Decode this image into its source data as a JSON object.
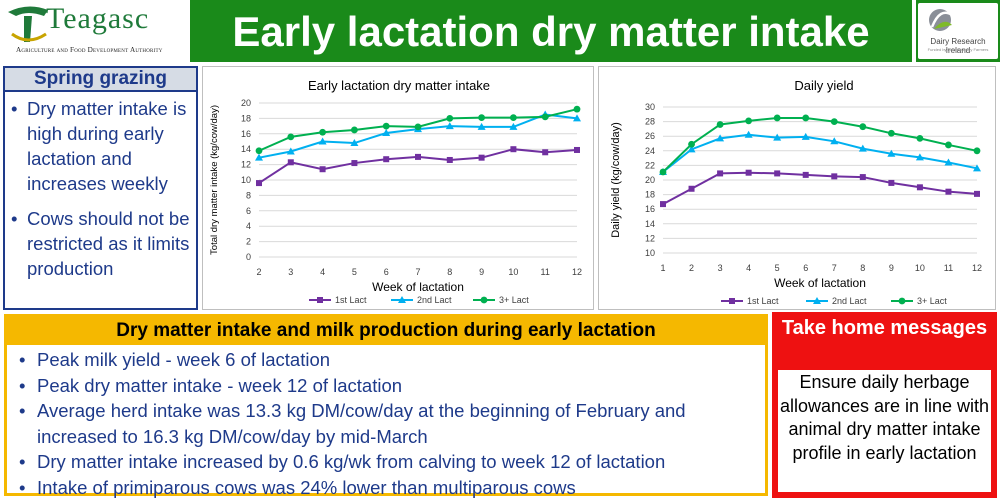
{
  "header": {
    "logo_name": "Teagasc",
    "logo_tagline": "Agriculture and Food Development Authority",
    "title": "Early lactation dry matter intake",
    "partner_logo_name": "Dairy Research Ireland",
    "partner_logo_tagline": "Funded by the Irish Dairy Farmers"
  },
  "spring": {
    "title": "Spring grazing",
    "bullets": [
      "Dry matter intake is high during early lactation and increases weekly",
      "Cows should not be restricted as it limits production"
    ]
  },
  "dm_box": {
    "title": "Dry matter intake and milk production during early lactation",
    "bullets": [
      "Peak milk yield - week 6 of lactation",
      "Peak dry matter intake - week 12 of lactation",
      "Average herd intake was 13.3 kg DM/cow/day at the beginning of February and increased to 16.3 kg DM/cow/day by mid-March",
      "Dry matter intake increased by 0.6 kg/wk from calving to week 12 of lactation",
      "Intake of primiparous cows was 24% lower than multiparous cows"
    ]
  },
  "take_home": {
    "title": "Take home messages",
    "body": "Ensure daily herbage allowances are in line with animal dry matter intake profile in early lactation"
  },
  "colors": {
    "series1": "#7030a0",
    "series2": "#00b0f0",
    "series3": "#00b050",
    "title_bar": "#1a8a1a",
    "take_home": "#ee1111",
    "dm_border": "#f5b800",
    "navy": "#1e3a8a"
  },
  "chart_data": [
    {
      "type": "line",
      "title": "Early lactation dry matter intake",
      "xlabel": "Week of lactation",
      "ylabel": "Total dry matter intake (kg/cow/day)",
      "x": [
        2,
        3,
        4,
        5,
        6,
        7,
        8,
        9,
        10,
        11,
        12
      ],
      "ylim": [
        0,
        20
      ],
      "yticks": [
        0,
        2,
        4,
        6,
        8,
        10,
        12,
        14,
        16,
        18,
        20
      ],
      "grid": true,
      "legend": "bottom",
      "series": [
        {
          "name": "1st Lact",
          "values": [
            9.6,
            12.3,
            11.4,
            12.2,
            12.7,
            13.0,
            12.6,
            12.9,
            14.0,
            13.6,
            13.9
          ]
        },
        {
          "name": "2nd Lact",
          "values": [
            12.9,
            13.7,
            15.0,
            14.8,
            16.1,
            16.6,
            17.0,
            16.9,
            16.9,
            18.5,
            18.0
          ]
        },
        {
          "name": "3+ Lact",
          "values": [
            13.8,
            15.6,
            16.2,
            16.5,
            17.0,
            16.9,
            18.0,
            18.1,
            18.1,
            18.2,
            19.2
          ]
        }
      ]
    },
    {
      "type": "line",
      "title": "Daily yield",
      "xlabel": "Week of lactation",
      "ylabel": "Daily yield (kg/cow/day)",
      "x": [
        1,
        2,
        3,
        4,
        5,
        6,
        7,
        8,
        9,
        10,
        11,
        12
      ],
      "ylim": [
        10,
        30
      ],
      "yticks": [
        10,
        12,
        14,
        16,
        18,
        20,
        22,
        24,
        26,
        28,
        30
      ],
      "grid": true,
      "legend": "bottom",
      "series": [
        {
          "name": "1st Lact",
          "values": [
            16.7,
            18.8,
            20.9,
            21.0,
            20.9,
            20.7,
            20.5,
            20.4,
            19.6,
            19.0,
            18.4,
            18.1
          ]
        },
        {
          "name": "2nd Lact",
          "values": [
            21.1,
            24.2,
            25.7,
            26.2,
            25.8,
            25.9,
            25.3,
            24.3,
            23.6,
            23.1,
            22.4,
            21.6
          ]
        },
        {
          "name": "3+ Lact",
          "values": [
            21.1,
            24.9,
            27.6,
            28.1,
            28.5,
            28.5,
            28.0,
            27.3,
            26.4,
            25.7,
            24.8,
            24.0
          ]
        }
      ]
    }
  ]
}
